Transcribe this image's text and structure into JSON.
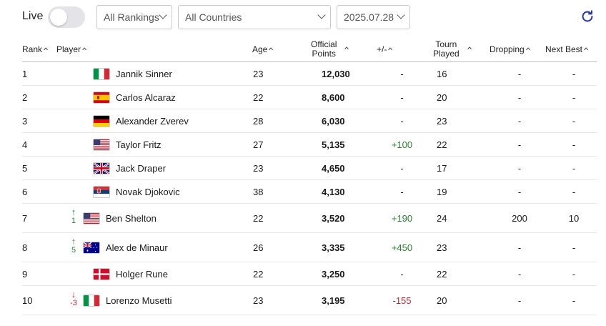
{
  "header": {
    "live_label": "Live",
    "live_on": false,
    "rankings_select": "All Rankings",
    "countries_select": "All Countries",
    "date_select": "2025.07.28"
  },
  "columns": {
    "rank": "Rank",
    "player": "Player",
    "age": "Age",
    "points_line1": "Official",
    "points_line2": "Points",
    "change": "+/-",
    "tourn_line1": "Tourn",
    "tourn_line2": "Played",
    "dropping": "Dropping",
    "next_best": "Next Best"
  },
  "rows": [
    {
      "rank": "1",
      "move": "",
      "player": "Jannik Sinner",
      "flag": "italy-flag",
      "age": "23",
      "points": "12,030",
      "change": "-",
      "tourn": "16",
      "dropping": "-",
      "next_best": "-"
    },
    {
      "rank": "2",
      "move": "",
      "player": "Carlos Alcaraz",
      "flag": "spain-flag",
      "age": "22",
      "points": "8,600",
      "change": "-",
      "tourn": "20",
      "dropping": "-",
      "next_best": "-"
    },
    {
      "rank": "3",
      "move": "",
      "player": "Alexander Zverev",
      "flag": "germany-flag",
      "age": "28",
      "points": "6,030",
      "change": "-",
      "tourn": "23",
      "dropping": "-",
      "next_best": "-"
    },
    {
      "rank": "4",
      "move": "",
      "player": "Taylor Fritz",
      "flag": "usa-flag",
      "age": "27",
      "points": "5,135",
      "change": "+100",
      "tourn": "22",
      "dropping": "-",
      "next_best": "-"
    },
    {
      "rank": "5",
      "move": "",
      "player": "Jack Draper",
      "flag": "uk-flag",
      "age": "23",
      "points": "4,650",
      "change": "-",
      "tourn": "17",
      "dropping": "-",
      "next_best": "-"
    },
    {
      "rank": "6",
      "move": "",
      "player": "Novak Djokovic",
      "flag": "serbia-flag",
      "age": "38",
      "points": "4,130",
      "change": "-",
      "tourn": "19",
      "dropping": "-",
      "next_best": "-"
    },
    {
      "rank": "7",
      "move": "1",
      "move_dir": "up",
      "player": "Ben Shelton",
      "flag": "usa-flag",
      "age": "22",
      "points": "3,520",
      "change": "+190",
      "tourn": "24",
      "dropping": "200",
      "next_best": "10"
    },
    {
      "rank": "8",
      "move": "5",
      "move_dir": "up",
      "player": "Alex de Minaur",
      "flag": "australia-flag",
      "age": "26",
      "points": "3,335",
      "change": "+450",
      "tourn": "23",
      "dropping": "-",
      "next_best": "-"
    },
    {
      "rank": "9",
      "move": "",
      "player": "Holger Rune",
      "flag": "denmark-flag",
      "age": "22",
      "points": "3,250",
      "change": "-",
      "tourn": "22",
      "dropping": "-",
      "next_best": "-"
    },
    {
      "rank": "10",
      "move": "-3",
      "move_dir": "down",
      "player": "Lorenzo Musetti",
      "flag": "italy-flag",
      "age": "23",
      "points": "3,195",
      "change": "-155",
      "tourn": "20",
      "dropping": "-",
      "next_best": "-"
    }
  ],
  "colors": {
    "positive": "#2e7d32",
    "negative": "#b02a37",
    "accent": "#2b3a9e"
  }
}
